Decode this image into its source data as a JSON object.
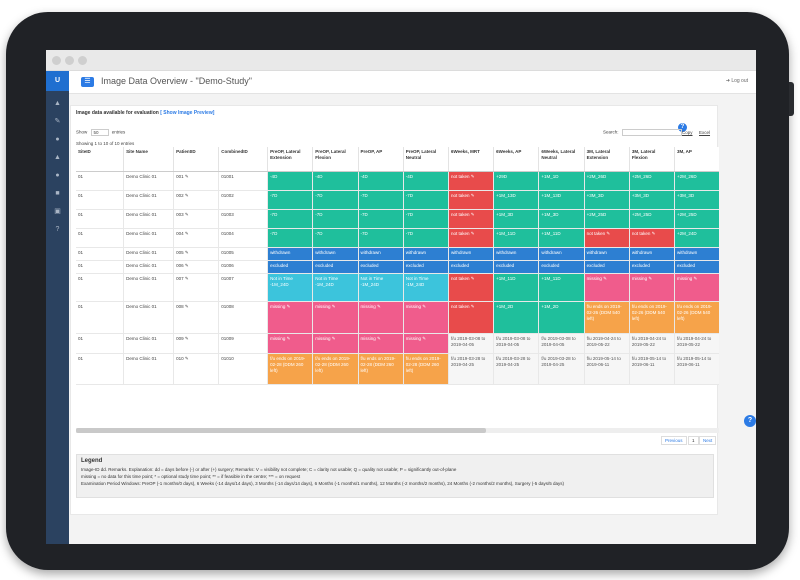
{
  "app": {
    "logo": "U",
    "title": "Image Data Overview - \"Demo-Study\"",
    "logout": "Log out"
  },
  "sidebar": {
    "icons": [
      "thumbs-up-icon",
      "pencil-icon",
      "bell-icon",
      "upload-icon",
      "bell-icon-2",
      "trash-icon",
      "book-icon",
      "question-icon"
    ]
  },
  "panel": {
    "heading": "Image data available for evaluation",
    "preview_link": "[ Show Image Preview]",
    "show_label": "Show",
    "show_value": "50",
    "entries_label": "entries",
    "search_label": "Search:",
    "export_links": [
      "Copy",
      "Excel"
    ],
    "showing": "Showing 1 to 10 of 10 entries",
    "help": "?"
  },
  "table": {
    "columns": [
      "SiteID",
      "Site Name",
      "PatientID",
      "CombinedID",
      "PreOP, Lateral Extension",
      "PreOP, Lateral Flexion",
      "PreOP, AP",
      "PreOP, Lateral Neutral",
      "6Weeks, MRT",
      "6Weeks, AP",
      "6Weeks, Lateral Neutral",
      "3M, Lateral Extension",
      "3M, Lateral Flexion",
      "3M, AP",
      "3M, Lateral Neutral",
      "6M, Lateral Extension",
      "6M, Lateral Flexion"
    ],
    "rows": [
      {
        "site_id": "01",
        "site": "Demo Clinic 01",
        "patient": "001 ✎",
        "combined": "01001",
        "cells": [
          {
            "c": "green",
            "t": "-4D"
          },
          {
            "c": "green",
            "t": "-4D"
          },
          {
            "c": "green",
            "t": "-4D"
          },
          {
            "c": "green",
            "t": "-4D"
          },
          {
            "c": "red",
            "t": "not taken ✎"
          },
          {
            "c": "green",
            "t": "+29D"
          },
          {
            "c": "green",
            "t": "+1M_1D"
          },
          {
            "c": "green",
            "t": "+2M_26D"
          },
          {
            "c": "green",
            "t": "+2M_26D"
          },
          {
            "c": "green",
            "t": "+2M_26D"
          },
          {
            "c": "green",
            "t": "+2M_26D"
          },
          {
            "c": "green",
            "t": "+5M_27D"
          },
          {
            "c": "green",
            "t": "+5M_27D"
          }
        ]
      },
      {
        "site_id": "01",
        "site": "Demo Clinic 01",
        "patient": "002 ✎",
        "combined": "01002",
        "cells": [
          {
            "c": "green",
            "t": "-7D"
          },
          {
            "c": "green",
            "t": "-7D"
          },
          {
            "c": "green",
            "t": "-7D"
          },
          {
            "c": "green",
            "t": "-7D"
          },
          {
            "c": "red",
            "t": "not taken ✎"
          },
          {
            "c": "green",
            "t": "+1M_13D"
          },
          {
            "c": "green",
            "t": "+1M_13D"
          },
          {
            "c": "green",
            "t": "+3M_3D"
          },
          {
            "c": "green",
            "t": "+3M_3D"
          },
          {
            "c": "green",
            "t": "+3M_3D"
          },
          {
            "c": "green",
            "t": "+3M_3D"
          },
          {
            "c": "green",
            "t": "+6M_1D"
          },
          {
            "c": "green",
            "t": "+6M_1D"
          }
        ]
      },
      {
        "site_id": "01",
        "site": "Demo Clinic 01",
        "patient": "003 ✎",
        "combined": "01003",
        "cells": [
          {
            "c": "green",
            "t": "-7D"
          },
          {
            "c": "green",
            "t": "-7D"
          },
          {
            "c": "green",
            "t": "-7D"
          },
          {
            "c": "green",
            "t": "-7D"
          },
          {
            "c": "red",
            "t": "not taken ✎"
          },
          {
            "c": "green",
            "t": "+1M_3D"
          },
          {
            "c": "green",
            "t": "+1M_3D"
          },
          {
            "c": "green",
            "t": "+2M_25D"
          },
          {
            "c": "green",
            "t": "+2M_25D"
          },
          {
            "c": "green",
            "t": "+2M_25D"
          },
          {
            "c": "green",
            "t": "+2M_25D"
          },
          {
            "c": "green",
            "t": "+5M_26D"
          },
          {
            "c": "green",
            "t": "+5M_26D"
          }
        ]
      },
      {
        "site_id": "01",
        "site": "Demo Clinic 01",
        "patient": "004 ✎",
        "combined": "01004",
        "cells": [
          {
            "c": "green",
            "t": "-7D"
          },
          {
            "c": "green",
            "t": "-7D"
          },
          {
            "c": "green",
            "t": "-7D"
          },
          {
            "c": "green",
            "t": "-7D"
          },
          {
            "c": "red",
            "t": "not taken ✎"
          },
          {
            "c": "green",
            "t": "+1M_11D"
          },
          {
            "c": "green",
            "t": "+1M_11D"
          },
          {
            "c": "red",
            "t": "not taken ✎"
          },
          {
            "c": "red",
            "t": "not taken ✎"
          },
          {
            "c": "green",
            "t": "+2M_24D"
          },
          {
            "c": "green",
            "t": "+2M_24D"
          },
          {
            "c": "red",
            "t": "not taken ✎"
          },
          {
            "c": "red",
            "t": "not taken ✎"
          }
        ]
      },
      {
        "site_id": "01",
        "site": "Demo Clinic 01",
        "patient": "005 ✎",
        "combined": "01005",
        "cells": [
          {
            "c": "blue",
            "t": "withdrawn"
          },
          {
            "c": "blue",
            "t": "withdrawn"
          },
          {
            "c": "blue",
            "t": "withdrawn"
          },
          {
            "c": "blue",
            "t": "withdrawn"
          },
          {
            "c": "blue",
            "t": "withdrawn"
          },
          {
            "c": "blue",
            "t": "withdrawn"
          },
          {
            "c": "blue",
            "t": "withdrawn"
          },
          {
            "c": "blue",
            "t": "withdrawn"
          },
          {
            "c": "blue",
            "t": "withdrawn"
          },
          {
            "c": "blue",
            "t": "withdrawn"
          },
          {
            "c": "blue",
            "t": "withdrawn"
          },
          {
            "c": "blue",
            "t": "withdrawn"
          },
          {
            "c": "blue",
            "t": "withdrawn"
          }
        ]
      },
      {
        "site_id": "01",
        "site": "Demo Clinic 01",
        "patient": "006 ✎",
        "combined": "01006",
        "cells": [
          {
            "c": "blue",
            "t": "excluded"
          },
          {
            "c": "blue",
            "t": "excluded"
          },
          {
            "c": "blue",
            "t": "excluded"
          },
          {
            "c": "blue",
            "t": "excluded"
          },
          {
            "c": "blue",
            "t": "excluded"
          },
          {
            "c": "blue",
            "t": "excluded"
          },
          {
            "c": "blue",
            "t": "excluded"
          },
          {
            "c": "blue",
            "t": "excluded"
          },
          {
            "c": "blue",
            "t": "excluded"
          },
          {
            "c": "blue",
            "t": "excluded"
          },
          {
            "c": "blue",
            "t": "excluded"
          },
          {
            "c": "blue",
            "t": "excluded"
          },
          {
            "c": "blue",
            "t": "excluded"
          }
        ]
      },
      {
        "site_id": "01",
        "site": "Demo Clinic 01",
        "patient": "007 ✎",
        "combined": "01007",
        "cells": [
          {
            "c": "cyan",
            "t": "Not in Time -1M_24D"
          },
          {
            "c": "cyan",
            "t": "Not in Time -1M_24D"
          },
          {
            "c": "cyan",
            "t": "Not in Time -1M_24D"
          },
          {
            "c": "cyan",
            "t": "Not in Time -1M_24D"
          },
          {
            "c": "red",
            "t": "not taken ✎"
          },
          {
            "c": "green",
            "t": "+1M_11D"
          },
          {
            "c": "green",
            "t": "+1M_11D"
          },
          {
            "c": "pink",
            "t": "missing ✎"
          },
          {
            "c": "pink",
            "t": "missing ✎"
          },
          {
            "c": "pink",
            "t": "missing ✎"
          },
          {
            "c": "pink",
            "t": "missing ✎"
          },
          {
            "c": "orange",
            "t": "f/u ends on 2019-04-09 (DDM 603 left)"
          },
          {
            "c": "orange",
            "t": "f/u ends on 2019-04-09 (DDM 603 left)"
          }
        ]
      },
      {
        "site_id": "01",
        "site": "Demo Clinic 01",
        "patient": "008 ✎",
        "combined": "01008",
        "cells": [
          {
            "c": "pink",
            "t": "missing ✎"
          },
          {
            "c": "pink",
            "t": "missing ✎"
          },
          {
            "c": "pink",
            "t": "missing ✎"
          },
          {
            "c": "pink",
            "t": "missing ✎"
          },
          {
            "c": "red",
            "t": "not taken ✎"
          },
          {
            "c": "green",
            "t": "+1M_2D"
          },
          {
            "c": "green",
            "t": "+1M_2D"
          },
          {
            "c": "orange",
            "t": "f/u ends on 2019-02-26 (DDM 540 left)"
          },
          {
            "c": "orange",
            "t": "f/u ends on 2019-02-26 (DDM 540 left)"
          },
          {
            "c": "orange",
            "t": "f/u ends on 2019-02-26 (DDM 540 left)"
          },
          {
            "c": "orange",
            "t": "f/u ends on 2019-02-26 (DDM 540 left)"
          },
          {
            "c": "white",
            "t": "f/u 2019-05-23 2019-05-29"
          },
          {
            "c": "white",
            "t": "f/u 2019-05-23 2019-05-29"
          }
        ]
      },
      {
        "site_id": "01",
        "site": "Demo Clinic 01",
        "patient": "009 ✎",
        "combined": "01009",
        "cells": [
          {
            "c": "pink",
            "t": "missing ✎"
          },
          {
            "c": "pink",
            "t": "missing ✎"
          },
          {
            "c": "pink",
            "t": "missing ✎"
          },
          {
            "c": "pink",
            "t": "missing ✎"
          },
          {
            "c": "grey",
            "t": "f/u 2019-03-08 to 2019-04-05"
          },
          {
            "c": "grey",
            "t": "f/u 2019-03-08 to 2019-04-05"
          },
          {
            "c": "grey",
            "t": "f/u 2019-03-08 to 2019-04-05"
          },
          {
            "c": "grey",
            "t": "f/u 2019-04-24 to 2019-05-22"
          },
          {
            "c": "grey",
            "t": "f/u 2019-04-24 to 2019-05-22"
          },
          {
            "c": "grey",
            "t": "f/u 2019-04-24 to 2019-05-22"
          },
          {
            "c": "grey",
            "t": "f/u 2019-04-24 to 2019-05-22"
          },
          {
            "c": "grey",
            "t": "f/u 2019-07-08 to 2019-09-08"
          },
          {
            "c": "grey",
            "t": "f/u 2019-07-08 to 2019-09-08"
          }
        ]
      },
      {
        "site_id": "01",
        "site": "Demo Clinic 01",
        "patient": "010 ✎",
        "combined": "01010",
        "cells": [
          {
            "c": "orange",
            "t": "f/u ends on 2019-02-28 (DDM 260 left)"
          },
          {
            "c": "orange",
            "t": "f/u ends on 2019-02-28 (DDM 260 left)"
          },
          {
            "c": "orange",
            "t": "f/u ends on 2019-02-28 (DDM 260 left)"
          },
          {
            "c": "orange",
            "t": "f/u ends on 2019-02-28 (DDM 260 left)"
          },
          {
            "c": "grey",
            "t": "f/u 2019-03-28 to 2019-04-25"
          },
          {
            "c": "grey",
            "t": "f/u 2019-03-28 to 2019-04-25"
          },
          {
            "c": "grey",
            "t": "f/u 2019-03-28 to 2019-04-25"
          },
          {
            "c": "grey",
            "t": "f/u 2019-05-14 to 2019-06-11"
          },
          {
            "c": "grey",
            "t": "f/u 2019-05-14 to 2019-06-11"
          },
          {
            "c": "grey",
            "t": "f/u 2019-05-14 to 2019-06-11"
          },
          {
            "c": "grey",
            "t": "f/u 2019-05-14 to 2019-06-11"
          },
          {
            "c": "grey",
            "t": "f/u 2019-08-02 to 2019-09-30"
          },
          {
            "c": "grey",
            "t": "f/u 2019-08-02 to 2019-09-30"
          }
        ]
      }
    ]
  },
  "pagination": {
    "previous": "Previous",
    "page": "1",
    "next": "Next"
  },
  "legend": {
    "title": "Legend",
    "line1": "Image-ID dd. Remarks. Explanation: dd = days before (-) or after (+) surgery; Remarks: V = visibility not complete; C = clarity not usable; Q = quality not usable; P = significantly out-of-plane",
    "line2": "missing = no data for this time point; * = optional study time point; ** = if feasible in the centre; *** = on request",
    "line3": "Examination Period Windows: PreOP (-1 months/0 days), 6 Weeks (-14 days/14 days), 3 Months (-14 days/14 days), 6 Months (-1 months/1 months), 12 Months (-2 months/2 months), 24 Months (-2 months/2 months), Surgery (-5 days/5 days)"
  },
  "colors": {
    "green": "#1fbf9c",
    "red": "#e84b4b",
    "blue": "#2d7fd2",
    "cyan": "#3cc4dc",
    "pink": "#f05c8c",
    "orange": "#f6a34a",
    "sidebar": "#2b4260",
    "accent": "#2c7be5"
  }
}
